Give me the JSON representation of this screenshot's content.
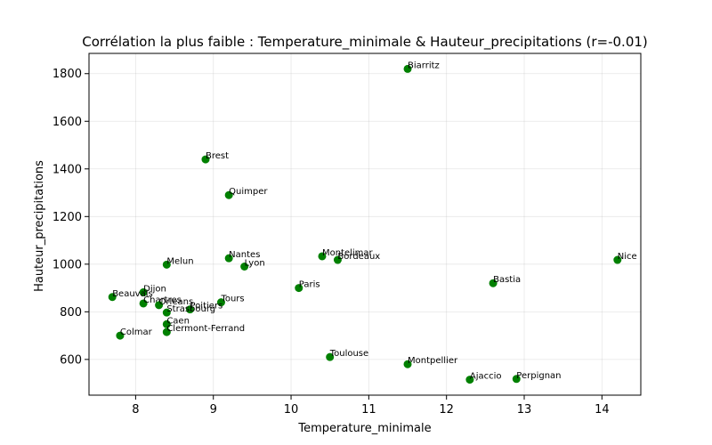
{
  "chart_data": {
    "type": "scatter",
    "title": "Corrélation la plus faible : Temperature_minimale & Hauteur_precipitations (r=-0.01)",
    "xlabel": "Temperature_minimale",
    "ylabel": "Hauteur_precipitations",
    "xlim": [
      7.4,
      14.5
    ],
    "ylim": [
      450,
      1885
    ],
    "xticks": [
      8,
      9,
      10,
      11,
      12,
      13,
      14
    ],
    "yticks": [
      600,
      800,
      1000,
      1200,
      1400,
      1600,
      1800
    ],
    "grid": true,
    "color": "#008000",
    "points": [
      {
        "label": "Biarritz",
        "x": 11.5,
        "y": 1820
      },
      {
        "label": "Brest",
        "x": 8.9,
        "y": 1440
      },
      {
        "label": "Quimper",
        "x": 9.2,
        "y": 1290
      },
      {
        "label": "Nantes",
        "x": 9.2,
        "y": 1025
      },
      {
        "label": "Lyon",
        "x": 9.4,
        "y": 990
      },
      {
        "label": "Montelimar",
        "x": 10.4,
        "y": 1033
      },
      {
        "label": "Bordeaux",
        "x": 10.6,
        "y": 1018
      },
      {
        "label": "Nice",
        "x": 14.2,
        "y": 1018
      },
      {
        "label": "Melun",
        "x": 8.4,
        "y": 998
      },
      {
        "label": "Paris",
        "x": 10.1,
        "y": 900
      },
      {
        "label": "Bastia",
        "x": 12.6,
        "y": 920
      },
      {
        "label": "Dijon",
        "x": 8.1,
        "y": 882
      },
      {
        "label": "Beauvais",
        "x": 7.7,
        "y": 862
      },
      {
        "label": "Chartres",
        "x": 8.1,
        "y": 835
      },
      {
        "label": "Orleans",
        "x": 8.3,
        "y": 828
      },
      {
        "label": "Tours",
        "x": 9.1,
        "y": 840
      },
      {
        "label": "Poitiers",
        "x": 8.7,
        "y": 810
      },
      {
        "label": "Strasbourg",
        "x": 8.4,
        "y": 797
      },
      {
        "label": "Caen",
        "x": 8.4,
        "y": 748
      },
      {
        "label": "Clermont-Ferrand",
        "x": 8.4,
        "y": 715
      },
      {
        "label": "Colmar",
        "x": 7.8,
        "y": 700
      },
      {
        "label": "Toulouse",
        "x": 10.5,
        "y": 610
      },
      {
        "label": "Montpellier",
        "x": 11.5,
        "y": 580
      },
      {
        "label": "Ajaccio",
        "x": 12.3,
        "y": 515
      },
      {
        "label": "Perpignan",
        "x": 12.9,
        "y": 518
      }
    ]
  }
}
